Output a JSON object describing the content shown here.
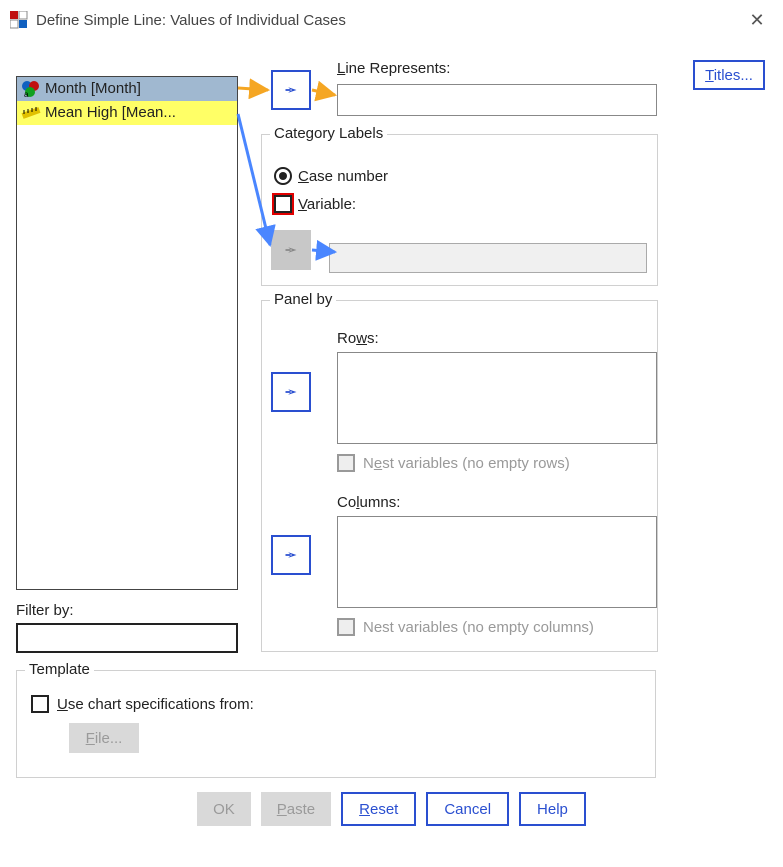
{
  "window": {
    "title": "Define Simple Line: Values of Individual Cases",
    "close_label": "✕"
  },
  "variables": {
    "items": [
      {
        "label": "Month [Month]",
        "icon": "nominal",
        "state": "selected"
      },
      {
        "label": "Mean High [Mean...",
        "icon": "scale",
        "state": "highlight"
      }
    ]
  },
  "titles_button": {
    "label": "Titles..."
  },
  "line_represents": {
    "label_pre": "L",
    "label_post": "ine Represents:",
    "value": ""
  },
  "category_labels": {
    "legend": "Category Labels",
    "case_number": {
      "pre": "C",
      "post": "ase number",
      "checked": true
    },
    "variable": {
      "pre": "V",
      "post": "ariable:",
      "checked": false
    },
    "variable_value": ""
  },
  "panel_by": {
    "legend": "Panel by",
    "rows_label_pre": "Ro",
    "rows_label_u": "w",
    "rows_label_post": "s:",
    "cols_label_pre": "Co",
    "cols_label_u": "l",
    "cols_label_post": "umns:",
    "nest_rows_pre": "N",
    "nest_rows_u": "e",
    "nest_rows_post": "st variables (no empty rows)",
    "nest_cols_pre": "Nest variables (no empty columns)"
  },
  "filter": {
    "label": "Filter by:",
    "value": ""
  },
  "template": {
    "legend": "Template",
    "use_spec_pre": "U",
    "use_spec_post": "se chart specifications from:",
    "file_label_pre": "F",
    "file_label_post": "ile..."
  },
  "buttons": {
    "ok": "OK",
    "paste_pre": "P",
    "paste_post": "aste",
    "reset_pre": "R",
    "reset_post": "eset",
    "cancel": "Cancel",
    "help": "Help"
  },
  "colors": {
    "accent": "#2a4fd0",
    "annotate_orange": "#f5a623",
    "annotate_blue": "#4a86ff",
    "highlight_red": "#e00000"
  },
  "icons": {
    "nominal_colors": {
      "a": "#1060c0",
      "b": "#c01010",
      "c": "#10a020"
    },
    "scale_color": "#e0c000"
  }
}
